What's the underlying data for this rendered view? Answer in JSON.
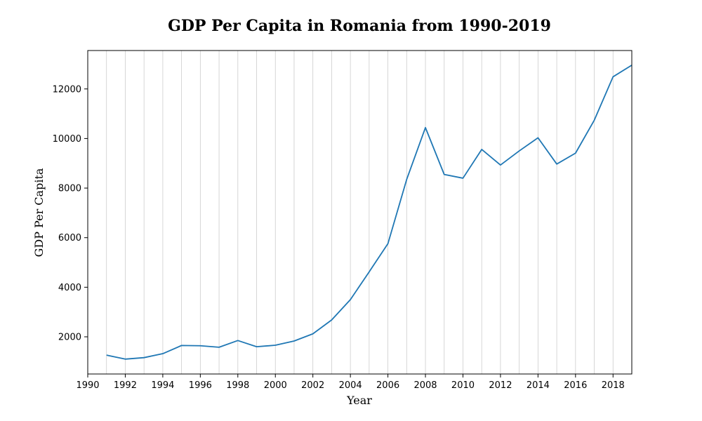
{
  "chart_data": {
    "type": "line",
    "title": "GDP Per Capita in Romania from 1990-2019",
    "xlabel": "Year",
    "ylabel": "GDP Per Capita",
    "xlim": [
      1990,
      2019
    ],
    "ylim": [
      500,
      13550
    ],
    "x_ticks": [
      1990,
      1992,
      1994,
      1996,
      1998,
      2000,
      2002,
      2004,
      2006,
      2008,
      2010,
      2012,
      2014,
      2016,
      2018
    ],
    "y_ticks": [
      2000,
      4000,
      6000,
      8000,
      10000,
      12000
    ],
    "grid": "vertical lines at every year",
    "colors": {
      "series": "#1f77b4",
      "grid": "#cccccc"
    },
    "x": [
      1991,
      1992,
      1993,
      1994,
      1995,
      1996,
      1997,
      1998,
      1999,
      2000,
      2001,
      2002,
      2003,
      2004,
      2005,
      2006,
      2007,
      2008,
      2009,
      2010,
      2011,
      2012,
      2013,
      2014,
      2015,
      2016,
      2017,
      2018,
      2019
    ],
    "series": [
      {
        "values": [
          1260,
          1100,
          1160,
          1320,
          1650,
          1640,
          1580,
          1850,
          1600,
          1660,
          1830,
          2120,
          2680,
          3500,
          4620,
          5760,
          8350,
          10440,
          8550,
          8400,
          9560,
          8930,
          9500,
          10030,
          8970,
          9410,
          10740,
          12490,
          12960
        ]
      }
    ]
  }
}
